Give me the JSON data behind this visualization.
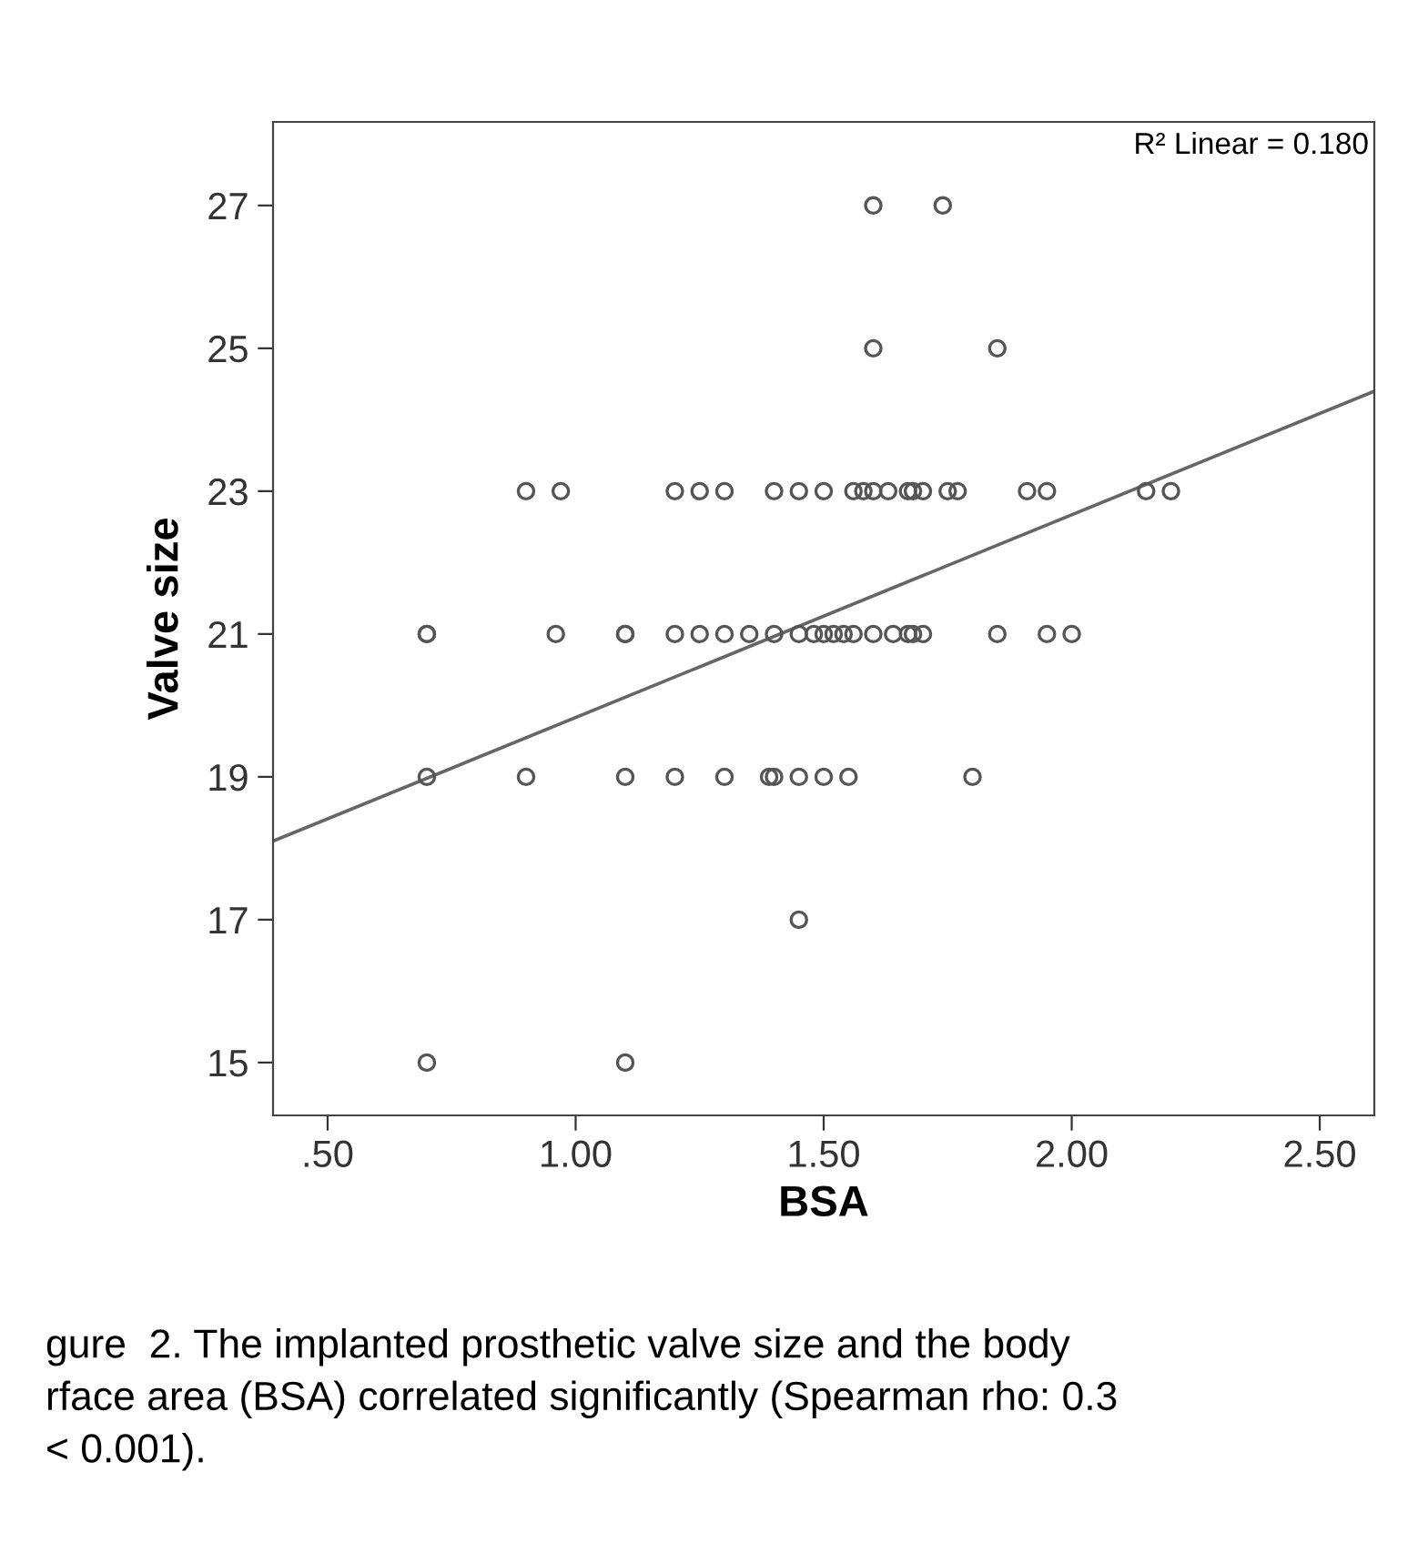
{
  "chart_data": {
    "type": "scatter",
    "xlabel": "BSA",
    "ylabel": "Valve size",
    "xlim": [
      0.39,
      2.61
    ],
    "ylim": [
      14.26,
      28.17
    ],
    "xticks": [
      {
        "value": 0.5,
        "label": ".50"
      },
      {
        "value": 1.0,
        "label": "1.00"
      },
      {
        "value": 1.5,
        "label": "1.50"
      },
      {
        "value": 2.0,
        "label": "2.00"
      },
      {
        "value": 2.5,
        "label": "2.50"
      }
    ],
    "yticks": [
      15,
      17,
      19,
      21,
      23,
      25,
      27
    ],
    "grid": false,
    "marker": "circle",
    "series": [
      {
        "color": "#555555",
        "x": [
          1.6,
          1.74,
          1.6,
          1.85,
          0.9,
          0.97,
          1.2,
          1.25,
          1.3,
          1.4,
          1.45,
          1.5,
          1.56,
          1.58,
          1.6,
          1.63,
          1.67,
          1.68,
          1.7,
          1.75,
          1.77,
          1.91,
          1.95,
          2.15,
          2.2,
          0.7,
          0.7,
          0.96,
          1.1,
          1.1,
          1.2,
          1.25,
          1.3,
          1.35,
          1.4,
          1.45,
          1.48,
          1.5,
          1.52,
          1.54,
          1.56,
          1.6,
          1.64,
          1.67,
          1.68,
          1.7,
          1.85,
          1.95,
          2.0,
          0.7,
          0.9,
          1.1,
          1.2,
          1.3,
          1.39,
          1.4,
          1.45,
          1.5,
          1.55,
          1.8,
          1.45,
          0.7,
          1.1
        ],
        "values": [
          27,
          27,
          25,
          25,
          23,
          23,
          23,
          23,
          23,
          23,
          23,
          23,
          23,
          23,
          23,
          23,
          23,
          23,
          23,
          23,
          23,
          23,
          23,
          23,
          23,
          21,
          21,
          21,
          21,
          21,
          21,
          21,
          21,
          21,
          21,
          21,
          21,
          21,
          21,
          21,
          21,
          21,
          21,
          21,
          21,
          21,
          21,
          21,
          21,
          19,
          19,
          19,
          19,
          19,
          19,
          19,
          19,
          19,
          19,
          19,
          17,
          15,
          15
        ]
      },
      {
        "type": "line",
        "color": "#666666",
        "marker": "none",
        "x": [
          0.39,
          2.61
        ],
        "values": [
          18.1,
          24.4
        ]
      }
    ],
    "annotations": [
      "R² Linear = 0.180",
      "gure  2. The implanted prosthetic valve size and the body\nrface area (BSA) correlated significantly (Spearman rho: 0.3\n< 0.001)."
    ]
  }
}
